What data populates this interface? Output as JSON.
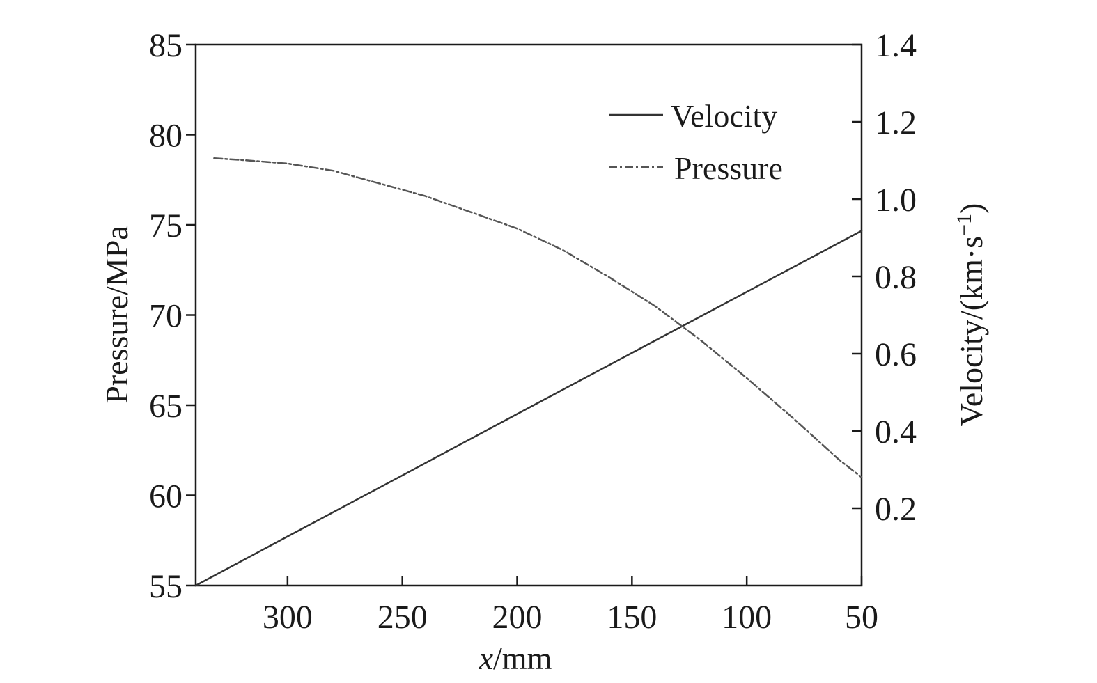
{
  "chart_data": {
    "type": "line",
    "xlabel_italic": "x",
    "xlabel_rest": "/mm",
    "ylabel_left": "Pressure/MPa",
    "ylabel_right_main": "Velocity/(km·s",
    "ylabel_right_sup": "−1",
    "ylabel_right_close": ")",
    "xlim": [
      340,
      50
    ],
    "x_reversed": true,
    "ylim_left": [
      55,
      85
    ],
    "ylim_right": [
      0,
      1.4
    ],
    "x_ticks": [
      300,
      250,
      200,
      150,
      100,
      50
    ],
    "x_tick_labels": [
      "300",
      "250",
      "200",
      "150",
      "100",
      "50"
    ],
    "y_left_ticks": [
      55,
      60,
      65,
      70,
      75,
      80,
      85
    ],
    "y_left_tick_labels": [
      "55",
      "60",
      "65",
      "70",
      "75",
      "80",
      "85"
    ],
    "y_right_ticks": [
      0.2,
      0.4,
      0.6,
      0.8,
      1.0,
      1.2,
      1.4
    ],
    "y_right_tick_labels": [
      "0.2",
      "0.4",
      "0.6",
      "0.8",
      "1.0",
      "1.2",
      "1.4"
    ],
    "legend_position": "top-right",
    "grid": false,
    "series": [
      {
        "name": "Velocity",
        "axis": "right",
        "style": "solid",
        "color": "#333333",
        "x": [
          340,
          300,
          250,
          200,
          150,
          100,
          50
        ],
        "y": [
          0.0,
          0.127,
          0.285,
          0.444,
          0.602,
          0.76,
          0.918
        ]
      },
      {
        "name": "Pressure",
        "axis": "left",
        "style": "dash-dot",
        "color": "#555555",
        "x": [
          332,
          320,
          300,
          280,
          260,
          240,
          220,
          200,
          180,
          160,
          140,
          120,
          100,
          80,
          60,
          50
        ],
        "y": [
          78.7,
          78.6,
          78.4,
          78.0,
          77.3,
          76.6,
          75.7,
          74.8,
          73.6,
          72.1,
          70.5,
          68.6,
          66.5,
          64.3,
          62.0,
          61.0
        ]
      }
    ]
  }
}
